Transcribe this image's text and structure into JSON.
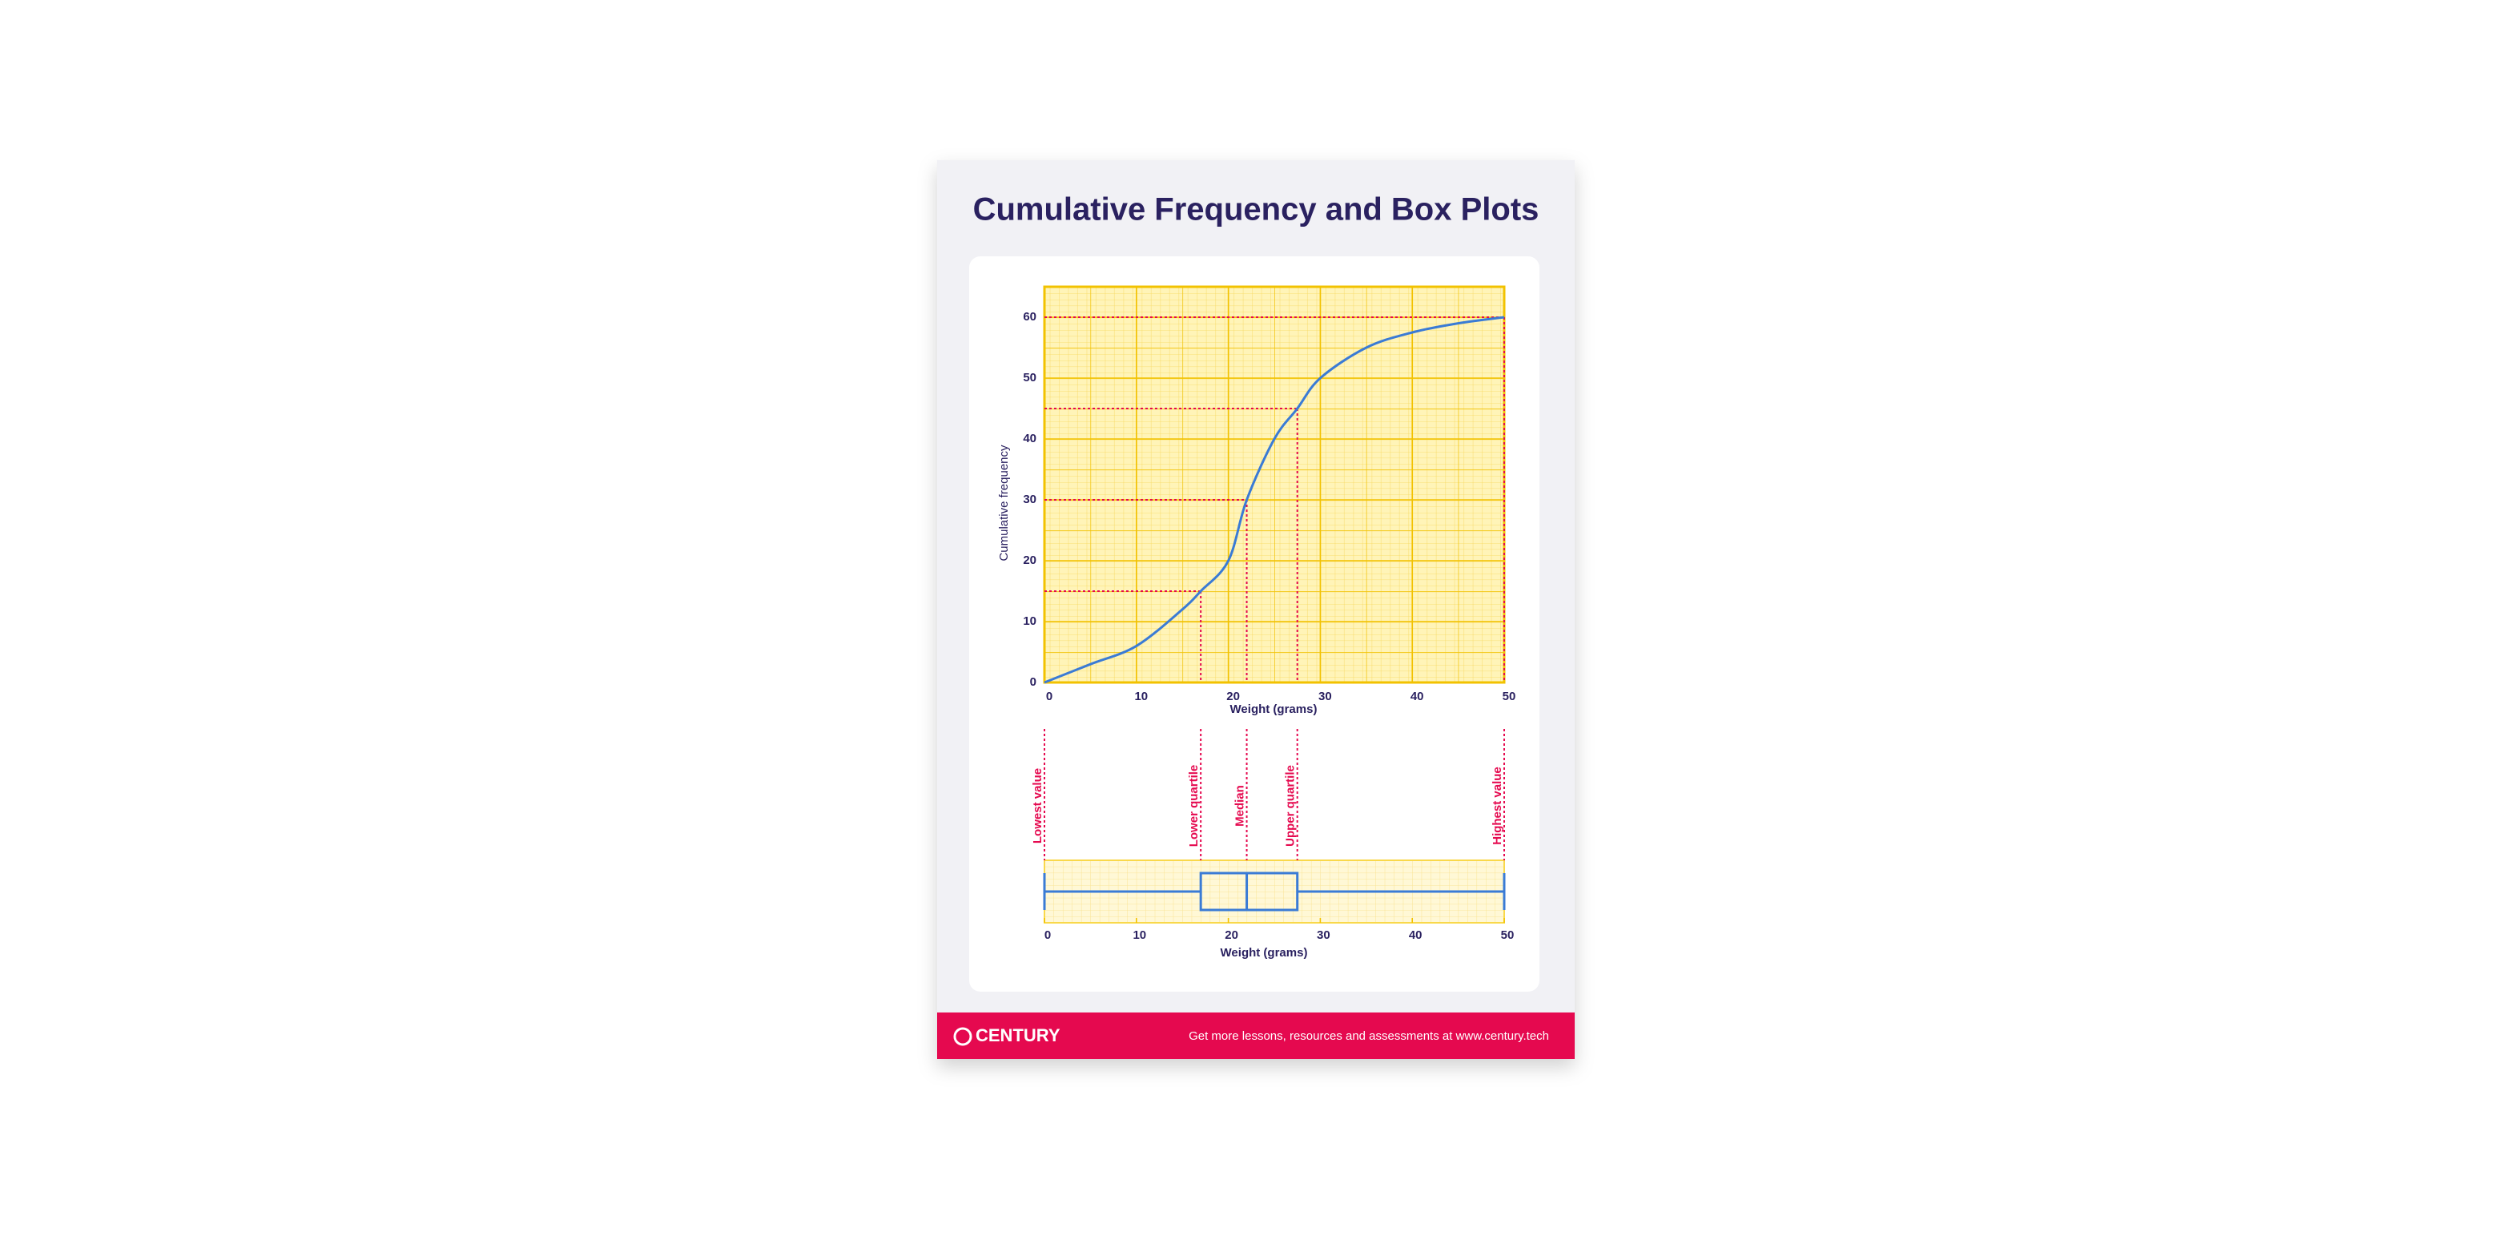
{
  "title": "Cumulative Frequency and Box Plots",
  "chart_data": [
    {
      "type": "line",
      "xlabel": "Weight (grams)",
      "ylabel": "Cumulative frequency",
      "x": [
        0,
        5,
        10,
        15,
        17,
        20,
        22,
        25,
        27.5,
        30,
        35,
        40,
        45,
        50
      ],
      "series": [
        {
          "color": "#3a7bd5",
          "values": [
            0,
            3,
            6,
            12,
            15,
            20,
            30,
            40,
            45,
            50,
            55,
            57.5,
            59,
            60
          ]
        }
      ],
      "guides": {
        "color": "#e5094f",
        "cf": [
          15,
          30,
          45,
          60
        ],
        "weight": [
          17,
          22,
          27.5,
          50
        ]
      },
      "xlim": [
        0,
        50
      ],
      "ylim": [
        0,
        65
      ],
      "xticks": [
        0,
        10,
        20,
        30,
        40,
        50
      ],
      "yticks": [
        0,
        10,
        20,
        30,
        40,
        50,
        60
      ],
      "grid": true
    },
    {
      "type": "box",
      "xlabel": "Weight (grams)",
      "color": "#3a7bd5",
      "guide_color": "#e5094f",
      "labels": [
        "Lowest value",
        "Lower quartile",
        "Median",
        "Upper quartile",
        "Highest value"
      ],
      "values": [
        0,
        17,
        22,
        27.5,
        50
      ],
      "xlim": [
        0,
        50
      ],
      "xticks": [
        0,
        10,
        20,
        30,
        40,
        50
      ]
    }
  ],
  "footer": {
    "brand": "CENTURY",
    "text": "Get more lessons, resources and assessments at www.century.tech"
  }
}
